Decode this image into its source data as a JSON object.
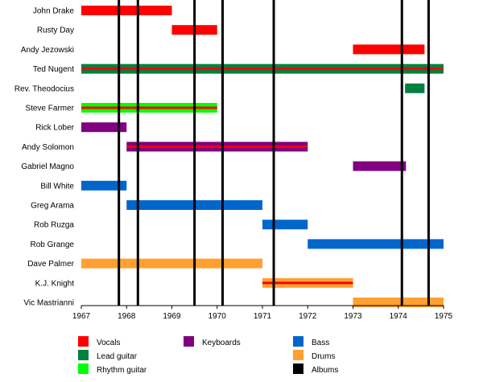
{
  "chart_data": {
    "type": "timeline",
    "title": "",
    "xlabel": "",
    "ylabel": "",
    "xlim": [
      1967,
      1975
    ],
    "x_ticks": [
      "1967",
      "1968",
      "1969",
      "1970",
      "1971",
      "1972",
      "1973",
      "1974",
      "1975"
    ],
    "grid": false,
    "legend_position": "bottom",
    "roles": [
      {
        "key": "vocals",
        "label": "Vocals",
        "color": "#ff0000"
      },
      {
        "key": "lead_guitar",
        "label": "Lead guitar",
        "color": "#008040"
      },
      {
        "key": "rhythm_guitar",
        "label": "Rhythm guitar",
        "color": "#00ff00"
      },
      {
        "key": "keyboards",
        "label": "Keyboards",
        "color": "#800080"
      },
      {
        "key": "bass",
        "label": "Bass",
        "color": "#0066cc"
      },
      {
        "key": "drums",
        "label": "Drums",
        "color": "#ffa030"
      },
      {
        "key": "albums",
        "label": "Albums",
        "color": "#000000"
      }
    ],
    "members": [
      {
        "name": "John Drake",
        "bars": [
          {
            "start": 1967.0,
            "end": 1969.0,
            "role": "vocals"
          }
        ]
      },
      {
        "name": "Rusty Day",
        "bars": [
          {
            "start": 1969.0,
            "end": 1970.0,
            "role": "vocals"
          }
        ]
      },
      {
        "name": "Andy Jezowski",
        "bars": [
          {
            "start": 1973.0,
            "end": 1974.58,
            "role": "vocals"
          }
        ]
      },
      {
        "name": "Ted Nugent",
        "bars": [
          {
            "start": 1967.0,
            "end": 1975.0,
            "role": "lead_guitar",
            "secondary": "vocals"
          }
        ]
      },
      {
        "name": "Rev. Theodocius",
        "bars": [
          {
            "start": 1974.15,
            "end": 1974.58,
            "role": "lead_guitar"
          }
        ]
      },
      {
        "name": "Steve Farmer",
        "bars": [
          {
            "start": 1967.0,
            "end": 1970.0,
            "role": "rhythm_guitar",
            "secondary": "vocals"
          }
        ]
      },
      {
        "name": "Rick Lober",
        "bars": [
          {
            "start": 1967.0,
            "end": 1968.0,
            "role": "keyboards"
          }
        ]
      },
      {
        "name": "Andy Solomon",
        "bars": [
          {
            "start": 1968.0,
            "end": 1972.0,
            "role": "keyboards",
            "secondary": "vocals"
          }
        ]
      },
      {
        "name": "Gabriel Magno",
        "bars": [
          {
            "start": 1973.0,
            "end": 1974.17,
            "role": "keyboards"
          }
        ]
      },
      {
        "name": "Bill White",
        "bars": [
          {
            "start": 1967.0,
            "end": 1968.0,
            "role": "bass"
          }
        ]
      },
      {
        "name": "Greg Arama",
        "bars": [
          {
            "start": 1968.0,
            "end": 1971.0,
            "role": "bass"
          }
        ]
      },
      {
        "name": "Rob Ruzga",
        "bars": [
          {
            "start": 1971.0,
            "end": 1972.0,
            "role": "bass"
          }
        ]
      },
      {
        "name": "Rob Grange",
        "bars": [
          {
            "start": 1972.0,
            "end": 1975.0,
            "role": "bass"
          }
        ]
      },
      {
        "name": "Dave Palmer",
        "bars": [
          {
            "start": 1967.0,
            "end": 1971.0,
            "role": "drums"
          }
        ]
      },
      {
        "name": "K.J. Knight",
        "bars": [
          {
            "start": 1971.0,
            "end": 1973.0,
            "role": "drums",
            "secondary": "vocals"
          }
        ]
      },
      {
        "name": "Vic Mastrianni",
        "bars": [
          {
            "start": 1973.0,
            "end": 1975.0,
            "role": "drums"
          }
        ]
      }
    ],
    "album_lines": [
      1967.83,
      1968.25,
      1969.5,
      1970.12,
      1971.25,
      1974.08,
      1974.67
    ]
  }
}
